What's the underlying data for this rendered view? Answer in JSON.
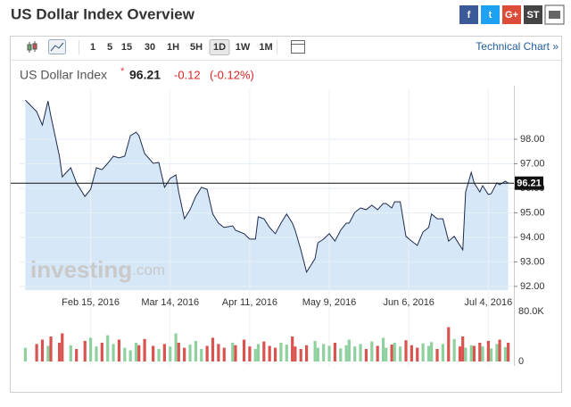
{
  "header": {
    "title": "US Dollar Index Overview",
    "share": [
      "f",
      "t",
      "G+",
      "ST"
    ]
  },
  "toolbar": {
    "intervals": [
      "1",
      "5",
      "15",
      "30",
      "1H",
      "5H",
      "1D",
      "1W",
      "1M"
    ],
    "active_index": 6,
    "link": "Technical Chart »"
  },
  "quote": {
    "name": "US Dollar Index",
    "last": 96.21,
    "change": -0.12,
    "change_percent": "(-0.12%)"
  },
  "watermark": [
    "investing",
    ".com"
  ],
  "chart_data": [
    {
      "type": "area",
      "color": "#1d2b4f",
      "fill": "#d6e7f7",
      "grid": true,
      "x": [
        "2016-01-23",
        "2016-01-27",
        "2016-01-29",
        "2016-01-31",
        "2016-02-01",
        "2016-02-04",
        "2016-02-05",
        "2016-02-08",
        "2016-02-10",
        "2016-02-13",
        "2016-02-15",
        "2016-02-17",
        "2016-02-19",
        "2016-02-21",
        "2016-02-23",
        "2016-02-25",
        "2016-02-27",
        "2016-02-29",
        "2016-03-02",
        "2016-03-03",
        "2016-03-05",
        "2016-03-08",
        "2016-03-10",
        "2016-03-12",
        "2016-03-14",
        "2016-03-16",
        "2016-03-17",
        "2016-03-19",
        "2016-03-21",
        "2016-03-23",
        "2016-03-25",
        "2016-03-27",
        "2016-03-29",
        "2016-03-31",
        "2016-04-02",
        "2016-04-05",
        "2016-04-06",
        "2016-04-09",
        "2016-04-11",
        "2016-04-13",
        "2016-04-14",
        "2016-04-16",
        "2016-04-18",
        "2016-04-20",
        "2016-04-22",
        "2016-04-24",
        "2016-04-26",
        "2016-04-27",
        "2016-04-29",
        "2016-05-01",
        "2016-05-04",
        "2016-05-05",
        "2016-05-07",
        "2016-05-09",
        "2016-05-11",
        "2016-05-13",
        "2016-05-15",
        "2016-05-16",
        "2016-05-18",
        "2016-05-20",
        "2016-05-22",
        "2016-05-24",
        "2016-05-26",
        "2016-05-28",
        "2016-05-29",
        "2016-05-31",
        "2016-06-01",
        "2016-06-03",
        "2016-06-05",
        "2016-06-07",
        "2016-06-09",
        "2016-06-11",
        "2016-06-13",
        "2016-06-14",
        "2016-06-16",
        "2016-06-18",
        "2016-06-20",
        "2016-06-22",
        "2016-06-24",
        "2016-06-25",
        "2016-06-26",
        "2016-06-28",
        "2016-06-29",
        "2016-07-01",
        "2016-07-02",
        "2016-07-04",
        "2016-07-05",
        "2016-07-07",
        "2016-07-08",
        "2016-07-10",
        "2016-07-11"
      ],
      "values": [
        99.6,
        99.13,
        98.58,
        99.56,
        98.95,
        97.31,
        96.47,
        96.84,
        96.22,
        95.67,
        95.96,
        96.84,
        96.76,
        97.02,
        97.31,
        97.24,
        97.31,
        98.15,
        98.29,
        98.15,
        97.42,
        97.02,
        97.05,
        96.04,
        96.4,
        96.55,
        95.85,
        94.76,
        95.13,
        95.67,
        96.04,
        95.96,
        94.95,
        94.58,
        94.4,
        94.47,
        94.29,
        94.15,
        93.93,
        93.93,
        94.84,
        94.76,
        94.4,
        94.15,
        94.58,
        94.95,
        94.58,
        94.29,
        93.49,
        92.58,
        93.13,
        93.78,
        93.93,
        94.15,
        93.85,
        94.29,
        94.58,
        94.58,
        95.02,
        95.2,
        95.13,
        95.31,
        95.13,
        95.38,
        95.38,
        95.2,
        95.45,
        95.45,
        94.04,
        93.85,
        93.67,
        94.22,
        94.4,
        94.95,
        94.76,
        94.76,
        93.85,
        94.04,
        93.67,
        93.49,
        95.85,
        96.65,
        96.22,
        95.85,
        96.11,
        95.75,
        95.78,
        96.22,
        96.15,
        96.29,
        96.21
      ],
      "xlim": [
        "2016-01-21",
        "2016-07-13"
      ],
      "xticks": [
        {
          "value": "2016-02-15",
          "label": "Feb 15, 2016"
        },
        {
          "value": "2016-03-14",
          "label": "Mar 14, 2016"
        },
        {
          "value": "2016-04-11",
          "label": "Apr 11, 2016"
        },
        {
          "value": "2016-05-09",
          "label": "May 9, 2016"
        },
        {
          "value": "2016-06-06",
          "label": "Jun 6, 2016"
        },
        {
          "value": "2016-07-04",
          "label": "Jul 4, 2016"
        }
      ],
      "ylim": [
        91.85,
        100.04
      ],
      "yticks": [
        {
          "value": 92,
          "label": "92.00"
        },
        {
          "value": 93,
          "label": "93.00"
        },
        {
          "value": 94,
          "label": "94.00"
        },
        {
          "value": 95,
          "label": "95.00"
        },
        {
          "value": 96,
          "label": "96.00"
        },
        {
          "value": 97,
          "label": "97.00"
        },
        {
          "value": 98,
          "label": "98.00"
        }
      ]
    },
    {
      "type": "bar",
      "up_color": "#8fd19e",
      "down_color": "#d9534f",
      "values": [
        22000,
        28000,
        35000,
        25000,
        40000,
        30000,
        45000,
        26000,
        20000,
        33000,
        38000,
        24000,
        30000,
        42000,
        28000,
        35000,
        22000,
        18000,
        30000,
        26000,
        36000,
        25000,
        20000,
        28000,
        24000,
        45000,
        30000,
        22000,
        27000,
        33000,
        20000,
        25000,
        38000,
        28000,
        22000,
        30000,
        26000,
        35000,
        24000,
        20000,
        28000,
        32000,
        25000,
        22000,
        30000,
        27000,
        40000,
        24000,
        20000,
        26000,
        33000,
        22000,
        28000,
        25000,
        30000,
        21000,
        26000,
        35000,
        24000,
        28000,
        20000,
        32000,
        25000,
        38000,
        22000,
        27000,
        30000,
        24000,
        34000,
        26000,
        22000,
        29000,
        25000,
        31000,
        20000,
        28000,
        55000,
        36000,
        24000,
        40000,
        22000,
        26000,
        25000,
        30000,
        24000,
        33000,
        21000,
        28000,
        35000,
        23000,
        30000
      ],
      "ylim": [
        0,
        80000
      ],
      "yticks": [
        {
          "value": 80000,
          "label": "80.0K"
        },
        0
      ]
    }
  ]
}
